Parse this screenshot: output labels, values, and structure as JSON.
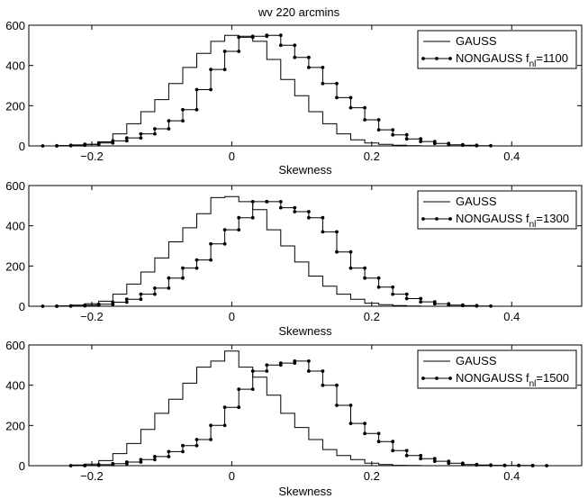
{
  "figure": {
    "title": "wv 220 arcmins"
  },
  "chart_data": [
    {
      "type": "histogram-step",
      "title": "wv 220 arcmins",
      "xlabel": "Skewness",
      "ylabel": "",
      "xlim": [
        -0.29,
        0.5
      ],
      "ylim": [
        0,
        600
      ],
      "xticks": [
        -0.2,
        0,
        0.2,
        0.4
      ],
      "xtick_labels": [
        "−0.2",
        "0",
        "0.2",
        "0.4"
      ],
      "yticks": [
        0,
        200,
        400,
        600
      ],
      "ytick_labels": [
        "0",
        "200",
        "400",
        "600"
      ],
      "legend": {
        "placement": "top-right",
        "entries": [
          {
            "label": "GAUSS"
          },
          {
            "label": "NONGAUSS f",
            "sub": "nl",
            "suffix": "=1100"
          }
        ]
      },
      "bin_width": 0.02,
      "series": [
        {
          "name": "GAUSS",
          "marker": "none",
          "x": [
            -0.26,
            -0.24,
            -0.22,
            -0.2,
            -0.18,
            -0.16,
            -0.14,
            -0.12,
            -0.1,
            -0.08,
            -0.06,
            -0.04,
            -0.02,
            0,
            0.02,
            0.04,
            0.06,
            0.08,
            0.1,
            0.12,
            0.14,
            0.16,
            0.18,
            0.2,
            0.22,
            0.24,
            0.26,
            0.28
          ],
          "y": [
            0,
            2,
            5,
            8,
            20,
            60,
            110,
            170,
            230,
            310,
            390,
            460,
            520,
            550,
            545,
            520,
            430,
            330,
            250,
            170,
            110,
            60,
            30,
            15,
            8,
            3,
            1,
            0
          ]
        },
        {
          "name": "NONGAUSS f_nl=1100",
          "marker": "dot",
          "x": [
            -0.26,
            -0.24,
            -0.22,
            -0.2,
            -0.18,
            -0.16,
            -0.14,
            -0.12,
            -0.1,
            -0.08,
            -0.06,
            -0.04,
            -0.02,
            0,
            0.02,
            0.04,
            0.06,
            0.08,
            0.1,
            0.12,
            0.14,
            0.16,
            0.18,
            0.2,
            0.22,
            0.24,
            0.26,
            0.28,
            0.3,
            0.32,
            0.34,
            0.36
          ],
          "y": [
            0,
            1,
            3,
            8,
            15,
            25,
            40,
            60,
            85,
            125,
            180,
            280,
            380,
            470,
            540,
            545,
            550,
            500,
            440,
            390,
            310,
            240,
            190,
            130,
            80,
            55,
            35,
            22,
            12,
            6,
            3,
            1
          ]
        }
      ]
    },
    {
      "type": "histogram-step",
      "title": "",
      "xlabel": "Skewness",
      "ylabel": "",
      "xlim": [
        -0.29,
        0.5
      ],
      "ylim": [
        0,
        600
      ],
      "xticks": [
        -0.2,
        0,
        0.2,
        0.4
      ],
      "xtick_labels": [
        "−0.2",
        "0",
        "0.2",
        "0.4"
      ],
      "yticks": [
        0,
        200,
        400,
        600
      ],
      "ytick_labels": [
        "0",
        "200",
        "400",
        "600"
      ],
      "legend": {
        "placement": "top-right",
        "entries": [
          {
            "label": "GAUSS"
          },
          {
            "label": "NONGAUSS f",
            "sub": "nl",
            "suffix": "=1300"
          }
        ]
      },
      "bin_width": 0.02,
      "series": [
        {
          "name": "GAUSS",
          "marker": "none",
          "x": [
            -0.26,
            -0.24,
            -0.22,
            -0.2,
            -0.18,
            -0.16,
            -0.14,
            -0.12,
            -0.1,
            -0.08,
            -0.06,
            -0.04,
            -0.02,
            0,
            0.02,
            0.04,
            0.06,
            0.08,
            0.1,
            0.12,
            0.14,
            0.16,
            0.18,
            0.2,
            0.22,
            0.24,
            0.26,
            0.28
          ],
          "y": [
            0,
            2,
            6,
            12,
            25,
            60,
            110,
            170,
            240,
            320,
            390,
            460,
            540,
            545,
            520,
            480,
            380,
            300,
            220,
            150,
            100,
            60,
            35,
            15,
            8,
            3,
            1,
            0
          ]
        },
        {
          "name": "NONGAUSS f_nl=1300",
          "marker": "dot",
          "x": [
            -0.26,
            -0.24,
            -0.22,
            -0.2,
            -0.18,
            -0.16,
            -0.14,
            -0.12,
            -0.1,
            -0.08,
            -0.06,
            -0.04,
            -0.02,
            0,
            0.02,
            0.04,
            0.06,
            0.08,
            0.1,
            0.12,
            0.14,
            0.16,
            0.18,
            0.2,
            0.22,
            0.24,
            0.26,
            0.28,
            0.3,
            0.32,
            0.34,
            0.36
          ],
          "y": [
            0,
            1,
            2,
            5,
            10,
            20,
            35,
            60,
            90,
            140,
            190,
            230,
            310,
            380,
            440,
            520,
            520,
            490,
            470,
            440,
            370,
            270,
            190,
            140,
            95,
            60,
            38,
            22,
            12,
            6,
            3,
            1
          ]
        }
      ]
    },
    {
      "type": "histogram-step",
      "title": "",
      "xlabel": "Skewness",
      "ylabel": "",
      "xlim": [
        -0.29,
        0.5
      ],
      "ylim": [
        0,
        600
      ],
      "xticks": [
        -0.2,
        0,
        0.2,
        0.4
      ],
      "xtick_labels": [
        "−0.2",
        "0",
        "0.2",
        "0.4"
      ],
      "yticks": [
        0,
        200,
        400,
        600
      ],
      "ytick_labels": [
        "0",
        "200",
        "400",
        "600"
      ],
      "legend": {
        "placement": "top-right",
        "entries": [
          {
            "label": "GAUSS"
          },
          {
            "label": "NONGAUSS f",
            "sub": "nl",
            "suffix": "=1500"
          }
        ]
      },
      "bin_width": 0.02,
      "series": [
        {
          "name": "GAUSS",
          "marker": "none",
          "x": [
            -0.24,
            -0.22,
            -0.2,
            -0.18,
            -0.16,
            -0.14,
            -0.12,
            -0.1,
            -0.08,
            -0.06,
            -0.04,
            -0.02,
            0,
            0.02,
            0.04,
            0.06,
            0.08,
            0.1,
            0.12,
            0.14,
            0.16,
            0.18,
            0.2,
            0.22,
            0.24,
            0.26,
            0.28
          ],
          "y": [
            0,
            3,
            8,
            25,
            60,
            110,
            180,
            260,
            330,
            410,
            490,
            520,
            570,
            490,
            440,
            350,
            260,
            190,
            130,
            80,
            50,
            30,
            12,
            6,
            2,
            1,
            0
          ]
        },
        {
          "name": "NONGAUSS f_nl=1500",
          "marker": "dot",
          "x": [
            -0.22,
            -0.2,
            -0.18,
            -0.16,
            -0.14,
            -0.12,
            -0.1,
            -0.08,
            -0.06,
            -0.04,
            -0.02,
            0,
            0.02,
            0.04,
            0.06,
            0.08,
            0.1,
            0.12,
            0.14,
            0.16,
            0.18,
            0.2,
            0.22,
            0.24,
            0.26,
            0.28,
            0.3,
            0.32,
            0.34,
            0.36,
            0.38,
            0.4,
            0.42,
            0.44
          ],
          "y": [
            0,
            2,
            5,
            10,
            18,
            30,
            45,
            70,
            100,
            130,
            200,
            290,
            380,
            470,
            500,
            510,
            520,
            470,
            400,
            300,
            210,
            160,
            120,
            75,
            50,
            35,
            22,
            12,
            6,
            3,
            2,
            1,
            1,
            0
          ]
        }
      ]
    }
  ]
}
